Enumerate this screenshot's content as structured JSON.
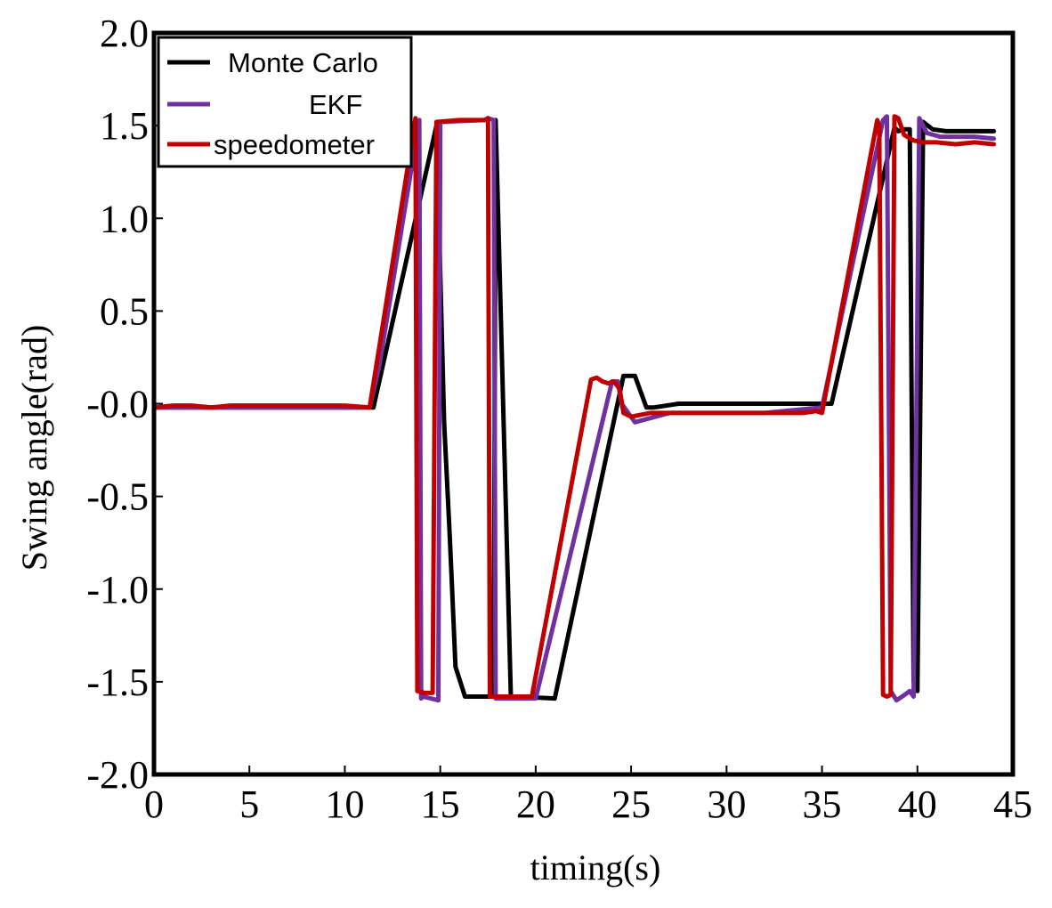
{
  "chart_data": {
    "type": "line",
    "xlabel": "timing(s)",
    "ylabel": "Swing angle(rad)",
    "xlim": [
      0,
      45
    ],
    "ylim": [
      -2.0,
      2.0
    ],
    "xticks": [
      "0",
      "5",
      "10",
      "15",
      "20",
      "25",
      "30",
      "35",
      "40",
      "45"
    ],
    "yticks": [
      "2.0",
      "1.5",
      "1.0",
      "0.5",
      "-0.0",
      "-0.5",
      "-1.0",
      "-1.5",
      "-2.0"
    ],
    "grid": false,
    "legend_position": "top-left",
    "series": [
      {
        "name": "Monte Carlo",
        "color": "#000000",
        "x": [
          0,
          5,
          10,
          11.5,
          14.8,
          15.2,
          15.5,
          15.8,
          16.3,
          17.8,
          17.9,
          18.7,
          19.0,
          21.0,
          24.6,
          25.2,
          25.8,
          26.2,
          27.5,
          35.5,
          38.8,
          39.0,
          39.3,
          39.6,
          39.8,
          40.0,
          40.3,
          40.8,
          41.5,
          44.0
        ],
        "y": [
          -0.02,
          -0.02,
          -0.02,
          -0.02,
          1.5,
          -0.1,
          -0.72,
          -1.42,
          -1.58,
          -1.58,
          1.53,
          -1.58,
          -1.58,
          -1.59,
          0.15,
          0.15,
          -0.02,
          -0.02,
          0.0,
          0.0,
          1.49,
          1.47,
          1.48,
          1.48,
          -1.5,
          -1.55,
          1.52,
          1.48,
          1.47,
          1.47
        ]
      },
      {
        "name": "EKF",
        "color": "#7030a0",
        "x": [
          0,
          5,
          10,
          11.3,
          11.8,
          13.9,
          14.0,
          14.1,
          14.9,
          15.0,
          17.3,
          17.5,
          17.8,
          17.9,
          20.0,
          24.0,
          24.3,
          24.5,
          25.2,
          27.0,
          32.0,
          35.0,
          38.2,
          38.4,
          38.6,
          38.9,
          39.2,
          39.6,
          39.8,
          40.1,
          40.5,
          41.2,
          43.0,
          44.0
        ],
        "y": [
          -0.02,
          -0.02,
          -0.02,
          -0.02,
          0.2,
          1.53,
          -1.59,
          -1.58,
          -1.6,
          1.52,
          1.53,
          1.54,
          1.53,
          -1.59,
          -1.59,
          0.12,
          0.12,
          0.0,
          -0.1,
          -0.05,
          -0.05,
          -0.02,
          1.53,
          1.55,
          -1.55,
          -1.6,
          -1.58,
          -1.55,
          -1.58,
          1.54,
          1.46,
          1.44,
          1.44,
          1.43
        ]
      },
      {
        "name": "speedometer",
        "color": "#c00000",
        "x": [
          0,
          1,
          2,
          3,
          4,
          5,
          8,
          10,
          11.3,
          11.8,
          13.7,
          13.8,
          14.2,
          14.4,
          14.6,
          14.8,
          16.0,
          17.0,
          17.4,
          17.5,
          17.6,
          19.8,
          22.9,
          23.2,
          23.5,
          23.8,
          24.1,
          24.4,
          24.6,
          25.0,
          26.0,
          28.0,
          32.0,
          34.0,
          34.7,
          35.0,
          37.9,
          38.0,
          38.2,
          38.4,
          38.6,
          38.8,
          39.0,
          39.3,
          39.8,
          40.3,
          41.0,
          42.0,
          43.0,
          44.0
        ],
        "y": [
          -0.02,
          -0.01,
          -0.01,
          -0.02,
          -0.01,
          -0.01,
          -0.01,
          -0.01,
          -0.02,
          0.3,
          1.54,
          -1.55,
          -1.56,
          -1.56,
          -1.56,
          1.52,
          1.53,
          1.53,
          1.53,
          1.54,
          -1.58,
          -1.58,
          0.13,
          0.14,
          0.12,
          0.11,
          0.12,
          0.08,
          -0.05,
          -0.07,
          -0.05,
          -0.05,
          -0.05,
          -0.05,
          -0.04,
          -0.05,
          1.53,
          1.5,
          -1.57,
          -1.58,
          -1.57,
          1.55,
          1.54,
          1.45,
          1.42,
          1.41,
          1.41,
          1.4,
          1.41,
          1.4
        ]
      }
    ]
  }
}
